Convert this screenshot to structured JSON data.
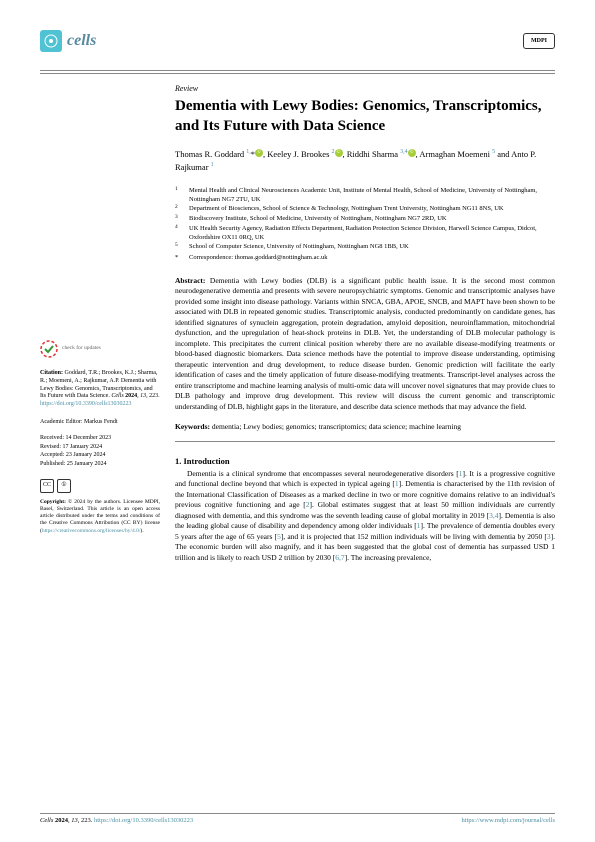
{
  "header": {
    "journal_name": "cells",
    "publisher": "MDPI"
  },
  "article": {
    "type": "Review",
    "title": "Dementia with Lewy Bodies: Genomics, Transcriptomics, and Its Future with Data Science",
    "authors_html": "Thomas R. Goddard <sup>1,</sup>*<span class='orcid'>©</span>, Keeley J. Brookes <sup>2</sup><span class='orcid'>©</span>, Riddhi Sharma <sup>3,4</sup><span class='orcid'>©</span>, Armaghan Moemeni <sup>5</sup> and Anto P. Rajkumar <sup>1</sup>"
  },
  "affiliations": [
    "Mental Health and Clinical Neurosciences Academic Unit, Institute of Mental Health, School of Medicine, University of Nottingham, Nottingham NG7 2TU, UK",
    "Department of Biosciences, School of Science & Technology, Nottingham Trent University, Nottingham NG11 8NS, UK",
    "Biodiscovery Institute, School of Medicine, University of Nottingham, Nottingham NG7 2RD, UK",
    "UK Health Security Agency, Radiation Effects Department, Radiation Protection Science Division, Harwell Science Campus, Didcot, Oxfordshire OX11 0RQ, UK",
    "School of Computer Science, University of Nottingham, Nottingham NG8 1BB, UK"
  ],
  "correspondence": "Correspondence: thomas.goddard@nottingham.ac.uk",
  "abstract_label": "Abstract:",
  "abstract": "Dementia with Lewy bodies (DLB) is a significant public health issue. It is the second most common neurodegenerative dementia and presents with severe neuropsychiatric symptoms. Genomic and transcriptomic analyses have provided some insight into disease pathology. Variants within SNCA, GBA, APOE, SNCB, and MAPT have been shown to be associated with DLB in repeated genomic studies. Transcriptomic analysis, conducted predominantly on candidate genes, has identified signatures of synuclein aggregation, protein degradation, amyloid deposition, neuroinflammation, mitochondrial dysfunction, and the upregulation of heat-shock proteins in DLB. Yet, the understanding of DLB molecular pathology is incomplete. This precipitates the current clinical position whereby there are no available disease-modifying treatments or blood-based diagnostic biomarkers. Data science methods have the potential to improve disease understanding, optimising therapeutic intervention and drug development, to reduce disease burden. Genomic prediction will facilitate the early identification of cases and the timely application of future disease-modifying treatments. Transcript-level analyses across the entire transcriptome and machine learning analysis of multi-omic data will uncover novel signatures that may provide clues to DLB pathology and improve drug development. This review will discuss the current genomic and transcriptomic understanding of DLB, highlight gaps in the literature, and describe data science methods that may advance the field.",
  "keywords_label": "Keywords:",
  "keywords": "dementia; Lewy bodies; genomics; transcriptomics; data science; machine learning",
  "section1_title": "1. Introduction",
  "intro_text": "Dementia is a clinical syndrome that encompasses several neurodegenerative disorders [1]. It is a progressive cognitive and functional decline beyond that which is expected in typical ageing [1]. Dementia is characterised by the 11th revision of the International Classification of Diseases as a marked decline in two or more cognitive domains relative to an individual's previous cognitive functioning and age [2]. Global estimates suggest that at least 50 million individuals are currently diagnosed with dementia, and this syndrome was the seventh leading cause of global mortality in 2019 [3,4]. Dementia is also the leading global cause of disability and dependency among older individuals [1]. The prevalence of dementia doubles every 5 years after the age of 65 years [5], and it is projected that 152 million individuals will be living with dementia by 2050 [3]. The economic burden will also magnify, and it has been suggested that the global cost of dementia has surpassed USD 1 trillion and is likely to reach USD 2 trillion by 2030 [6,7]. The increasing prevalence,",
  "sidebar": {
    "check_updates": "check for updates",
    "citation_label": "Citation:",
    "citation": "Goddard, T.R.; Brookes, K.J.; Sharma, R.; Moemeni, A.; Rajkumar, A.P. Dementia with Lewy Bodies: Genomics, Transcriptomics, and Its Future with Data Science. Cells 2024, 13, 223. https://doi.org/10.3390/cells13030223",
    "editor": "Academic Editor: Markus Fendt",
    "received": "Received: 14 December 2023",
    "revised": "Revised: 17 January 2024",
    "accepted": "Accepted: 23 January 2024",
    "published": "Published: 25 January 2024",
    "copyright_label": "Copyright:",
    "copyright": "© 2024 by the authors. Licensee MDPI, Basel, Switzerland. This article is an open access article distributed under the terms and conditions of the Creative Commons Attribution (CC BY) license (https://creativecommons.org/licenses/by/4.0/)."
  },
  "footer": {
    "left": "Cells 2024, 13, 223. https://doi.org/10.3390/cells13030223",
    "right": "https://www.mdpi.com/journal/cells"
  }
}
